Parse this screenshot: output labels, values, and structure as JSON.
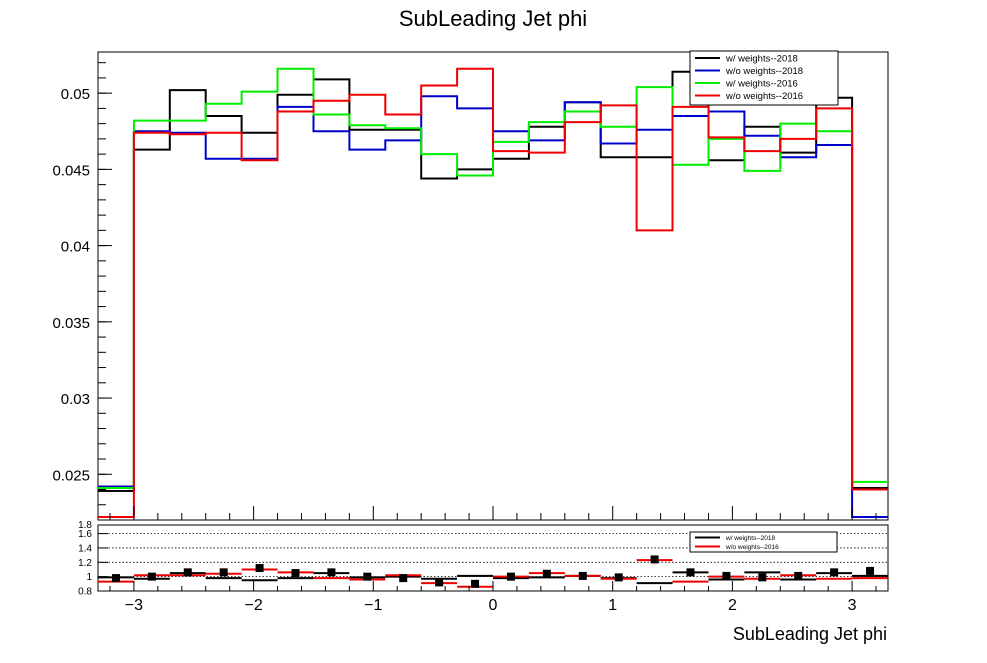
{
  "chart_data": {
    "type": "line",
    "title": "SubLeading Jet phi",
    "xlabel": "SubLeading Jet phi",
    "colors": {
      "black": "#000000",
      "blue": "#0000cc",
      "green": "#00ee00",
      "red": "#ee0000"
    },
    "bin_edges": [
      -3.3,
      -3.0,
      -2.7,
      -2.4,
      -2.1,
      -1.8,
      -1.5,
      -1.2,
      -0.9,
      -0.6,
      -0.3,
      0.0,
      0.3,
      0.6,
      0.9,
      1.2,
      1.5,
      1.8,
      2.1,
      2.4,
      2.7,
      3.0,
      3.3
    ],
    "main": {
      "ylim": [
        0.022,
        0.0527
      ],
      "yticks": [
        0.025,
        0.03,
        0.035,
        0.04,
        0.045,
        0.05
      ],
      "ytick_labels": [
        "0.025",
        "0.03",
        "0.035",
        "0.04",
        "0.045",
        "0.05"
      ],
      "legend": {
        "position": "top-right",
        "entries": [
          "w/ weights--2018",
          "w/o weights--2018",
          "w/ weights--2016",
          "w/o weights--2016"
        ]
      },
      "series": [
        {
          "name": "w/ weights--2018",
          "color": "#000000",
          "values": [
            0.0239,
            0.0463,
            0.0502,
            0.0485,
            0.0474,
            0.0499,
            0.0509,
            0.0476,
            0.0476,
            0.0444,
            0.045,
            0.0457,
            0.0478,
            0.0494,
            0.0458,
            0.0458,
            0.0514,
            0.0456,
            0.0478,
            0.0461,
            0.0497,
            0.0241
          ]
        },
        {
          "name": "w/o weights--2018",
          "color": "#0000cc",
          "values": [
            0.0242,
            0.0475,
            0.0474,
            0.0457,
            0.0457,
            0.0491,
            0.0475,
            0.0463,
            0.0469,
            0.0498,
            0.049,
            0.0475,
            0.0469,
            0.0494,
            0.0467,
            0.0476,
            0.0485,
            0.0488,
            0.0472,
            0.0458,
            0.0466,
            0.0222
          ]
        },
        {
          "name": "w/ weights--2016",
          "color": "#00ee00",
          "values": [
            0.0241,
            0.0482,
            0.0482,
            0.0493,
            0.0501,
            0.0516,
            0.0486,
            0.0479,
            0.0477,
            0.046,
            0.0446,
            0.0468,
            0.0481,
            0.0488,
            0.0478,
            0.0504,
            0.0453,
            0.047,
            0.0449,
            0.048,
            0.0475,
            0.0245
          ]
        },
        {
          "name": "w/o weights--2016",
          "color": "#ee0000",
          "values": [
            0.0222,
            0.0474,
            0.0473,
            0.0474,
            0.0456,
            0.0488,
            0.0495,
            0.0499,
            0.0486,
            0.0505,
            0.0516,
            0.0462,
            0.0461,
            0.0481,
            0.0492,
            0.041,
            0.0491,
            0.0471,
            0.0462,
            0.047,
            0.049,
            0.024
          ]
        }
      ]
    },
    "ratio": {
      "ylim": [
        0.8,
        1.72
      ],
      "yticks": [
        0.8,
        1.0,
        1.2,
        1.4,
        1.6
      ],
      "ytick_labels": [
        "0.8",
        "1",
        "1.2",
        "1.4",
        "1.6"
      ],
      "extra_top_label": "1.8",
      "xticks": [
        -3,
        -2,
        -1,
        0,
        1,
        2,
        3
      ],
      "xtick_labels": [
        "−3",
        "−2",
        "−1",
        "0",
        "1",
        "2",
        "3"
      ],
      "legend": {
        "position": "top-right",
        "entries": [
          "w/ weights--2018",
          "w/o weights--2016"
        ]
      },
      "series": [
        {
          "name": "w/ weights--2018",
          "color": "#000000",
          "values": [
            0.99,
            0.97,
            1.05,
            0.98,
            0.95,
            0.98,
            1.05,
            0.99,
            1.0,
            0.97,
            1.01,
            0.98,
            0.99,
            1.01,
            0.98,
            0.91,
            1.06,
            0.96,
            1.06,
            0.96,
            1.05,
            1.01
          ]
        },
        {
          "name": "w/o weights--2016",
          "color": "#ee0000",
          "values": [
            0.93,
            1.02,
            1.02,
            1.04,
            1.1,
            1.06,
            0.98,
            0.96,
            1.02,
            0.91,
            0.86,
            1.0,
            1.05,
            1.01,
            0.97,
            1.23,
            0.93,
            1.0,
            0.97,
            1.02,
            0.97,
            0.98
          ]
        }
      ],
      "markers": {
        "color": "#000000",
        "values": [
          0.98,
          1.0,
          1.06,
          1.06,
          1.12,
          1.05,
          1.06,
          1.0,
          0.98,
          0.92,
          0.9,
          1.0,
          1.04,
          1.01,
          0.99,
          1.24,
          1.06,
          1.01,
          0.99,
          1.01,
          1.06,
          1.08
        ]
      }
    }
  }
}
